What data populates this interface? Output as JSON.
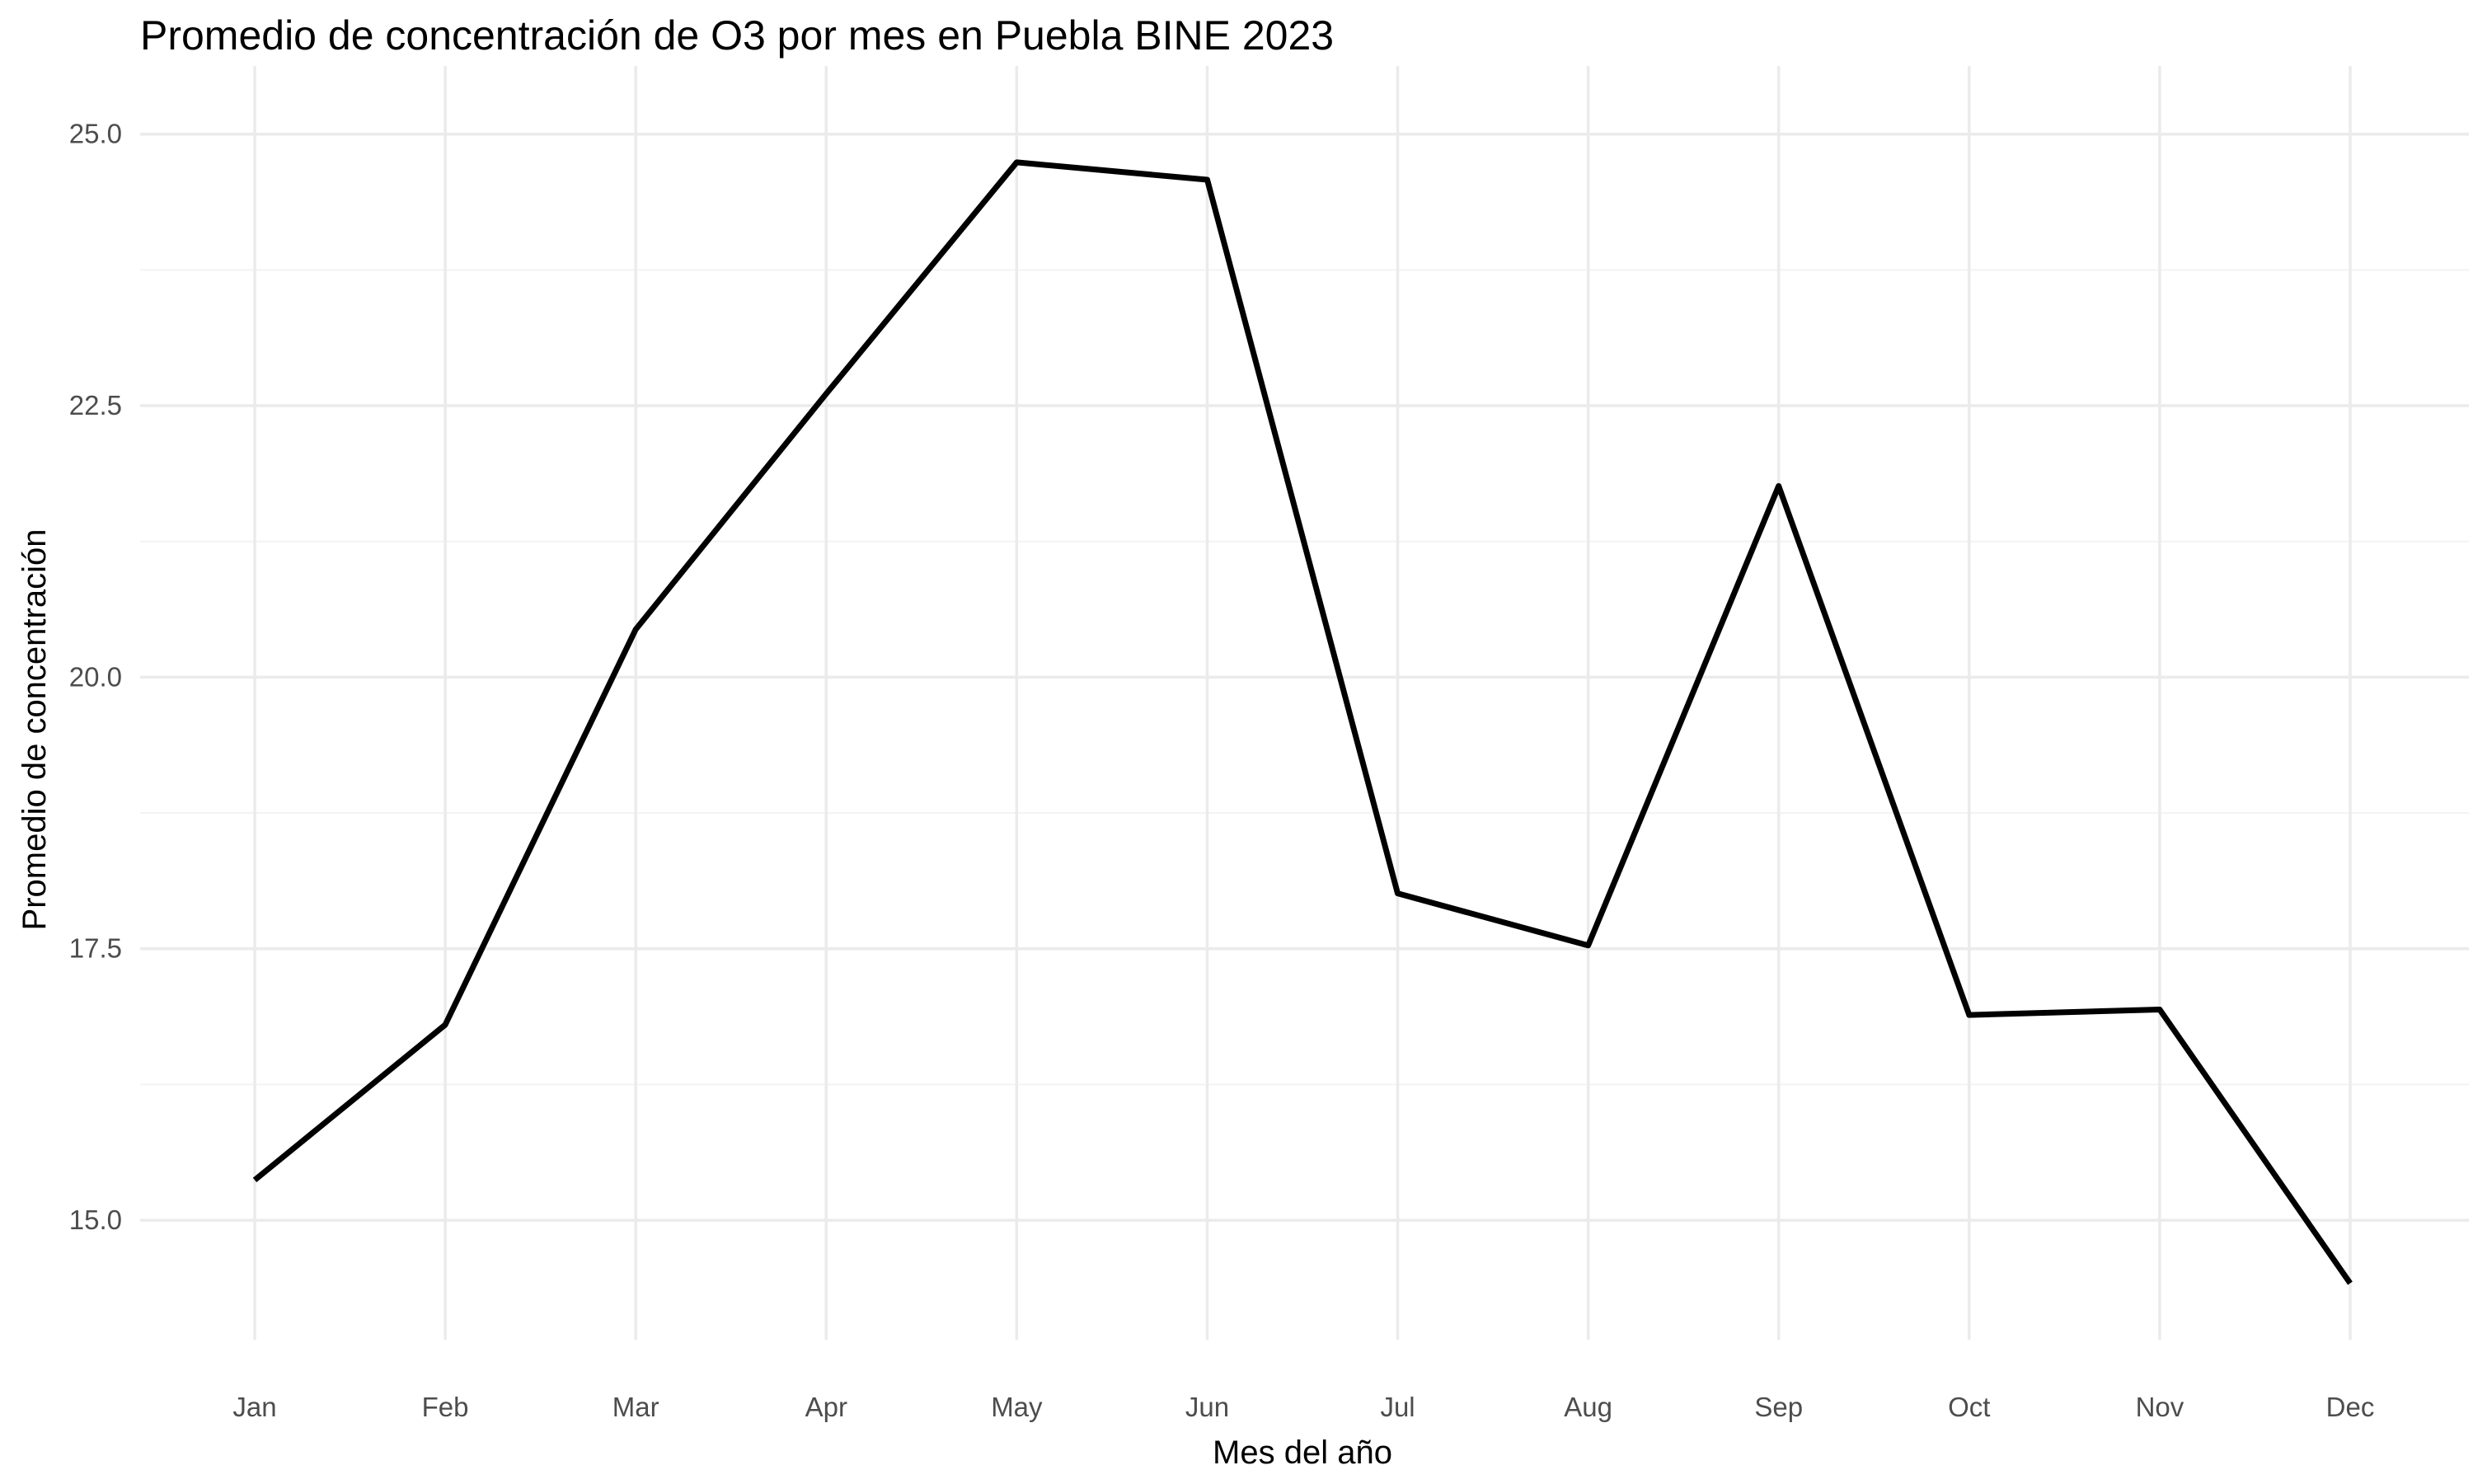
{
  "chart_data": {
    "type": "line",
    "title": "Promedio de concentración de O3 por mes en Puebla BINE 2023",
    "xlabel": "Mes del año",
    "ylabel": "Promedio de concentración",
    "categories": [
      "Jan",
      "Feb",
      "Mar",
      "Apr",
      "May",
      "Jun",
      "Jul",
      "Aug",
      "Sep",
      "Oct",
      "Nov",
      "Dec"
    ],
    "series": [
      {
        "values": [
          15.37,
          16.8,
          20.44,
          22.61,
          24.74,
          24.58,
          18.01,
          17.53,
          21.76,
          16.89,
          16.94,
          14.42
        ]
      }
    ],
    "ylim": [
      13.9,
      25.4
    ],
    "y_ticks": [
      15.0,
      17.5,
      20.0,
      22.5,
      25.0
    ],
    "y_tick_labels": [
      "15.0",
      "17.5",
      "20.0",
      "22.5",
      "25.0"
    ],
    "grid": true,
    "legend": "none",
    "line_color": "#000000"
  }
}
